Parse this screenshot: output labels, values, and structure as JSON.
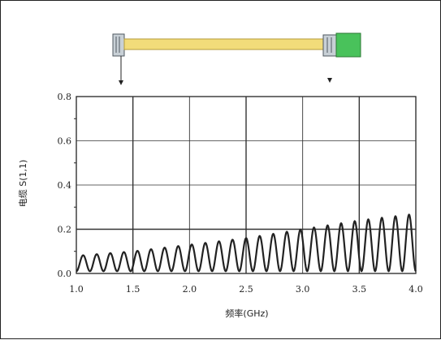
{
  "chart_data": {
    "type": "line",
    "title": "",
    "xlabel": "频率(GHz)",
    "ylabel": "电缆 S(1,1)",
    "xlim": [
      1.0,
      4.0
    ],
    "ylim": [
      0.0,
      0.8
    ],
    "x_ticks": [
      "1.0",
      "1.5",
      "2.0",
      "2.5",
      "3.0",
      "3.5",
      "4.0"
    ],
    "y_ticks": [
      "0.0",
      "0.2",
      "0.4",
      "0.6",
      "0.8"
    ],
    "grid": true,
    "series": [
      {
        "name": "",
        "description_points": {
          "x": [
            1.0,
            1.5,
            2.0,
            2.5,
            3.0,
            3.5,
            4.0
          ],
          "envelope_max": [
            0.08,
            0.1,
            0.13,
            0.16,
            0.2,
            0.24,
            0.27
          ],
          "envelope_min": [
            0.01,
            0.01,
            0.01,
            0.01,
            0.01,
            0.01,
            0.01
          ]
        },
        "ripple_count": 25,
        "color": "#222222"
      }
    ],
    "colors": {
      "cable": "#f2dc7a",
      "connector": "#b8c2c8",
      "load": "#49c25b",
      "line": "#222222",
      "grid": "#333333"
    }
  }
}
